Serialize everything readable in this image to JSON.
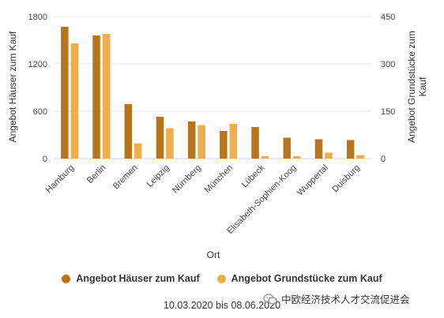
{
  "chart_data": {
    "type": "bar",
    "xlabel": "Ort",
    "ylabel_left": "Angebot Häuser zum Kauf",
    "ylabel_right": "Angebot Grundstücke zum Kauf",
    "ylim_left": [
      0,
      1800
    ],
    "ylim_right": [
      0,
      450
    ],
    "yticks_left": [
      0,
      600,
      1200,
      1800
    ],
    "yticks_right": [
      0,
      150,
      300,
      450
    ],
    "categories": [
      "Hamburg",
      "Berlin",
      "Bremen",
      "Leipzig",
      "Nürnberg",
      "München",
      "Lübeck",
      "Elisabeth-Sophien-Koog",
      "Wuppertal",
      "Duisburg"
    ],
    "series": [
      {
        "name": "Angebot Häuser zum Kauf",
        "axis": "left",
        "color": "#b8741a",
        "values": [
          1670,
          1560,
          690,
          530,
          470,
          350,
          400,
          265,
          245,
          235
        ]
      },
      {
        "name": "Angebot Grundstücke zum Kauf",
        "axis": "right",
        "color": "#f0ad4e",
        "values": [
          365,
          395,
          48,
          96,
          106,
          110,
          8,
          8,
          19,
          11
        ]
      }
    ],
    "grid": true,
    "legend_position": "bottom-center"
  },
  "caption": "10.03.2020 bis 08.06.2020",
  "watermark": {
    "text": "中欧经济技术人才交流促进会",
    "icon": "wechat-icon"
  }
}
